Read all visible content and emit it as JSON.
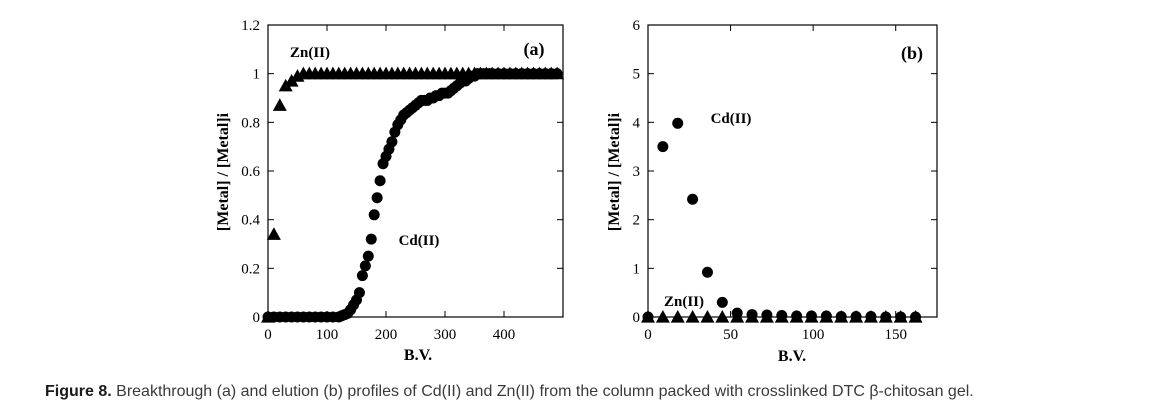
{
  "caption": {
    "label": "Figure 8.",
    "text": "Breakthrough (a) and elution (b) profiles of Cd(II) and Zn(II) from the column packed with crosslinked DTC β-chitosan gel."
  },
  "chart_data": [
    {
      "type": "scatter",
      "panel_label": "(a)",
      "xlabel": "B.V.",
      "ylabel": "[Metal] / [Metal]i",
      "xlim": [
        0,
        500
      ],
      "ylim": [
        0,
        1.2
      ],
      "x_ticks": [
        0,
        100,
        200,
        300,
        400
      ],
      "y_ticks": [
        0,
        0.2,
        0.4,
        0.6,
        0.8,
        1,
        1.2
      ],
      "y_tick_labels": [
        "0",
        "0.2",
        "0.4",
        "0.6",
        "0.8",
        "1",
        "1.2"
      ],
      "series": [
        {
          "name": "Zn(II)",
          "marker": "triangle",
          "x": [
            0,
            10,
            20,
            30,
            40,
            50,
            60,
            70,
            80,
            90,
            100,
            110,
            120,
            130,
            140,
            150,
            160,
            170,
            180,
            190,
            200,
            210,
            220,
            230,
            240,
            250,
            260,
            270,
            280,
            290,
            300,
            310,
            320,
            330,
            340,
            350,
            360,
            370,
            380,
            390,
            400,
            410,
            420,
            430,
            440,
            450,
            460,
            470,
            480,
            490
          ],
          "y": [
            0,
            0.34,
            0.87,
            0.95,
            0.97,
            0.99,
            1,
            1,
            1,
            1,
            1,
            1,
            1,
            1,
            1,
            1,
            1,
            1,
            1,
            1,
            1,
            1,
            1,
            1,
            1,
            1,
            1,
            1,
            1,
            1,
            1,
            1,
            1,
            1,
            1,
            1,
            1,
            1,
            1,
            1,
            1,
            1,
            1,
            1,
            1,
            1,
            1,
            1,
            1,
            1
          ]
        },
        {
          "name": "Cd(II)",
          "marker": "circle",
          "x": [
            0,
            10,
            20,
            30,
            40,
            50,
            60,
            70,
            80,
            90,
            100,
            110,
            120,
            125,
            130,
            135,
            140,
            145,
            150,
            155,
            160,
            165,
            170,
            175,
            180,
            185,
            190,
            195,
            200,
            205,
            210,
            215,
            220,
            225,
            230,
            235,
            240,
            245,
            250,
            255,
            260,
            265,
            270,
            275,
            280,
            285,
            290,
            295,
            300,
            305,
            310,
            315,
            320,
            325,
            330,
            335,
            340,
            345,
            350,
            355,
            360,
            365,
            370,
            375,
            380,
            390,
            400,
            410,
            420,
            430,
            440,
            450,
            460,
            470,
            480,
            490
          ],
          "y": [
            0,
            0,
            0,
            0,
            0,
            0,
            0,
            0,
            0,
            0,
            0,
            0,
            0,
            0.005,
            0.01,
            0.015,
            0.03,
            0.05,
            0.07,
            0.1,
            0.17,
            0.21,
            0.25,
            0.32,
            0.42,
            0.49,
            0.56,
            0.63,
            0.66,
            0.69,
            0.72,
            0.76,
            0.79,
            0.81,
            0.83,
            0.84,
            0.85,
            0.86,
            0.87,
            0.88,
            0.89,
            0.89,
            0.89,
            0.9,
            0.9,
            0.91,
            0.91,
            0.92,
            0.92,
            0.92,
            0.93,
            0.94,
            0.95,
            0.96,
            0.97,
            0.97,
            0.98,
            0.99,
            0.99,
            1,
            1,
            1,
            1,
            1,
            1,
            1,
            1,
            1,
            1,
            1,
            1,
            1,
            1,
            1,
            1,
            1
          ]
        }
      ]
    },
    {
      "type": "scatter",
      "panel_label": "(b)",
      "xlabel": "B.V.",
      "ylabel": "[Metal] / [Metal]i",
      "xlim": [
        0,
        175
      ],
      "ylim": [
        0,
        6
      ],
      "x_ticks": [
        0,
        50,
        100,
        150
      ],
      "y_ticks": [
        0,
        1,
        2,
        3,
        4,
        5,
        6
      ],
      "y_tick_labels": [
        "0",
        "1",
        "2",
        "3",
        "4",
        "5",
        "6"
      ],
      "series": [
        {
          "name": "Cd(II)",
          "marker": "circle",
          "x": [
            0,
            9,
            18,
            27,
            36,
            45,
            54,
            63,
            72,
            81,
            90,
            99,
            108,
            117,
            126,
            135,
            144,
            153,
            162
          ],
          "y": [
            0,
            3.5,
            3.98,
            2.42,
            0.92,
            0.3,
            0.08,
            0.05,
            0.04,
            0.03,
            0.02,
            0.02,
            0.02,
            0.01,
            0.01,
            0.01,
            0,
            0,
            0
          ]
        },
        {
          "name": "Zn(II)",
          "marker": "triangle",
          "x": [
            0,
            9,
            18,
            27,
            36,
            45,
            54,
            63,
            72,
            81,
            90,
            99,
            108,
            117,
            126,
            135,
            144,
            153,
            162
          ],
          "y": [
            0,
            0,
            0,
            0,
            0,
            0,
            0,
            0,
            0,
            0,
            0,
            0,
            0,
            0,
            0,
            0,
            0,
            0,
            0
          ]
        }
      ]
    }
  ]
}
